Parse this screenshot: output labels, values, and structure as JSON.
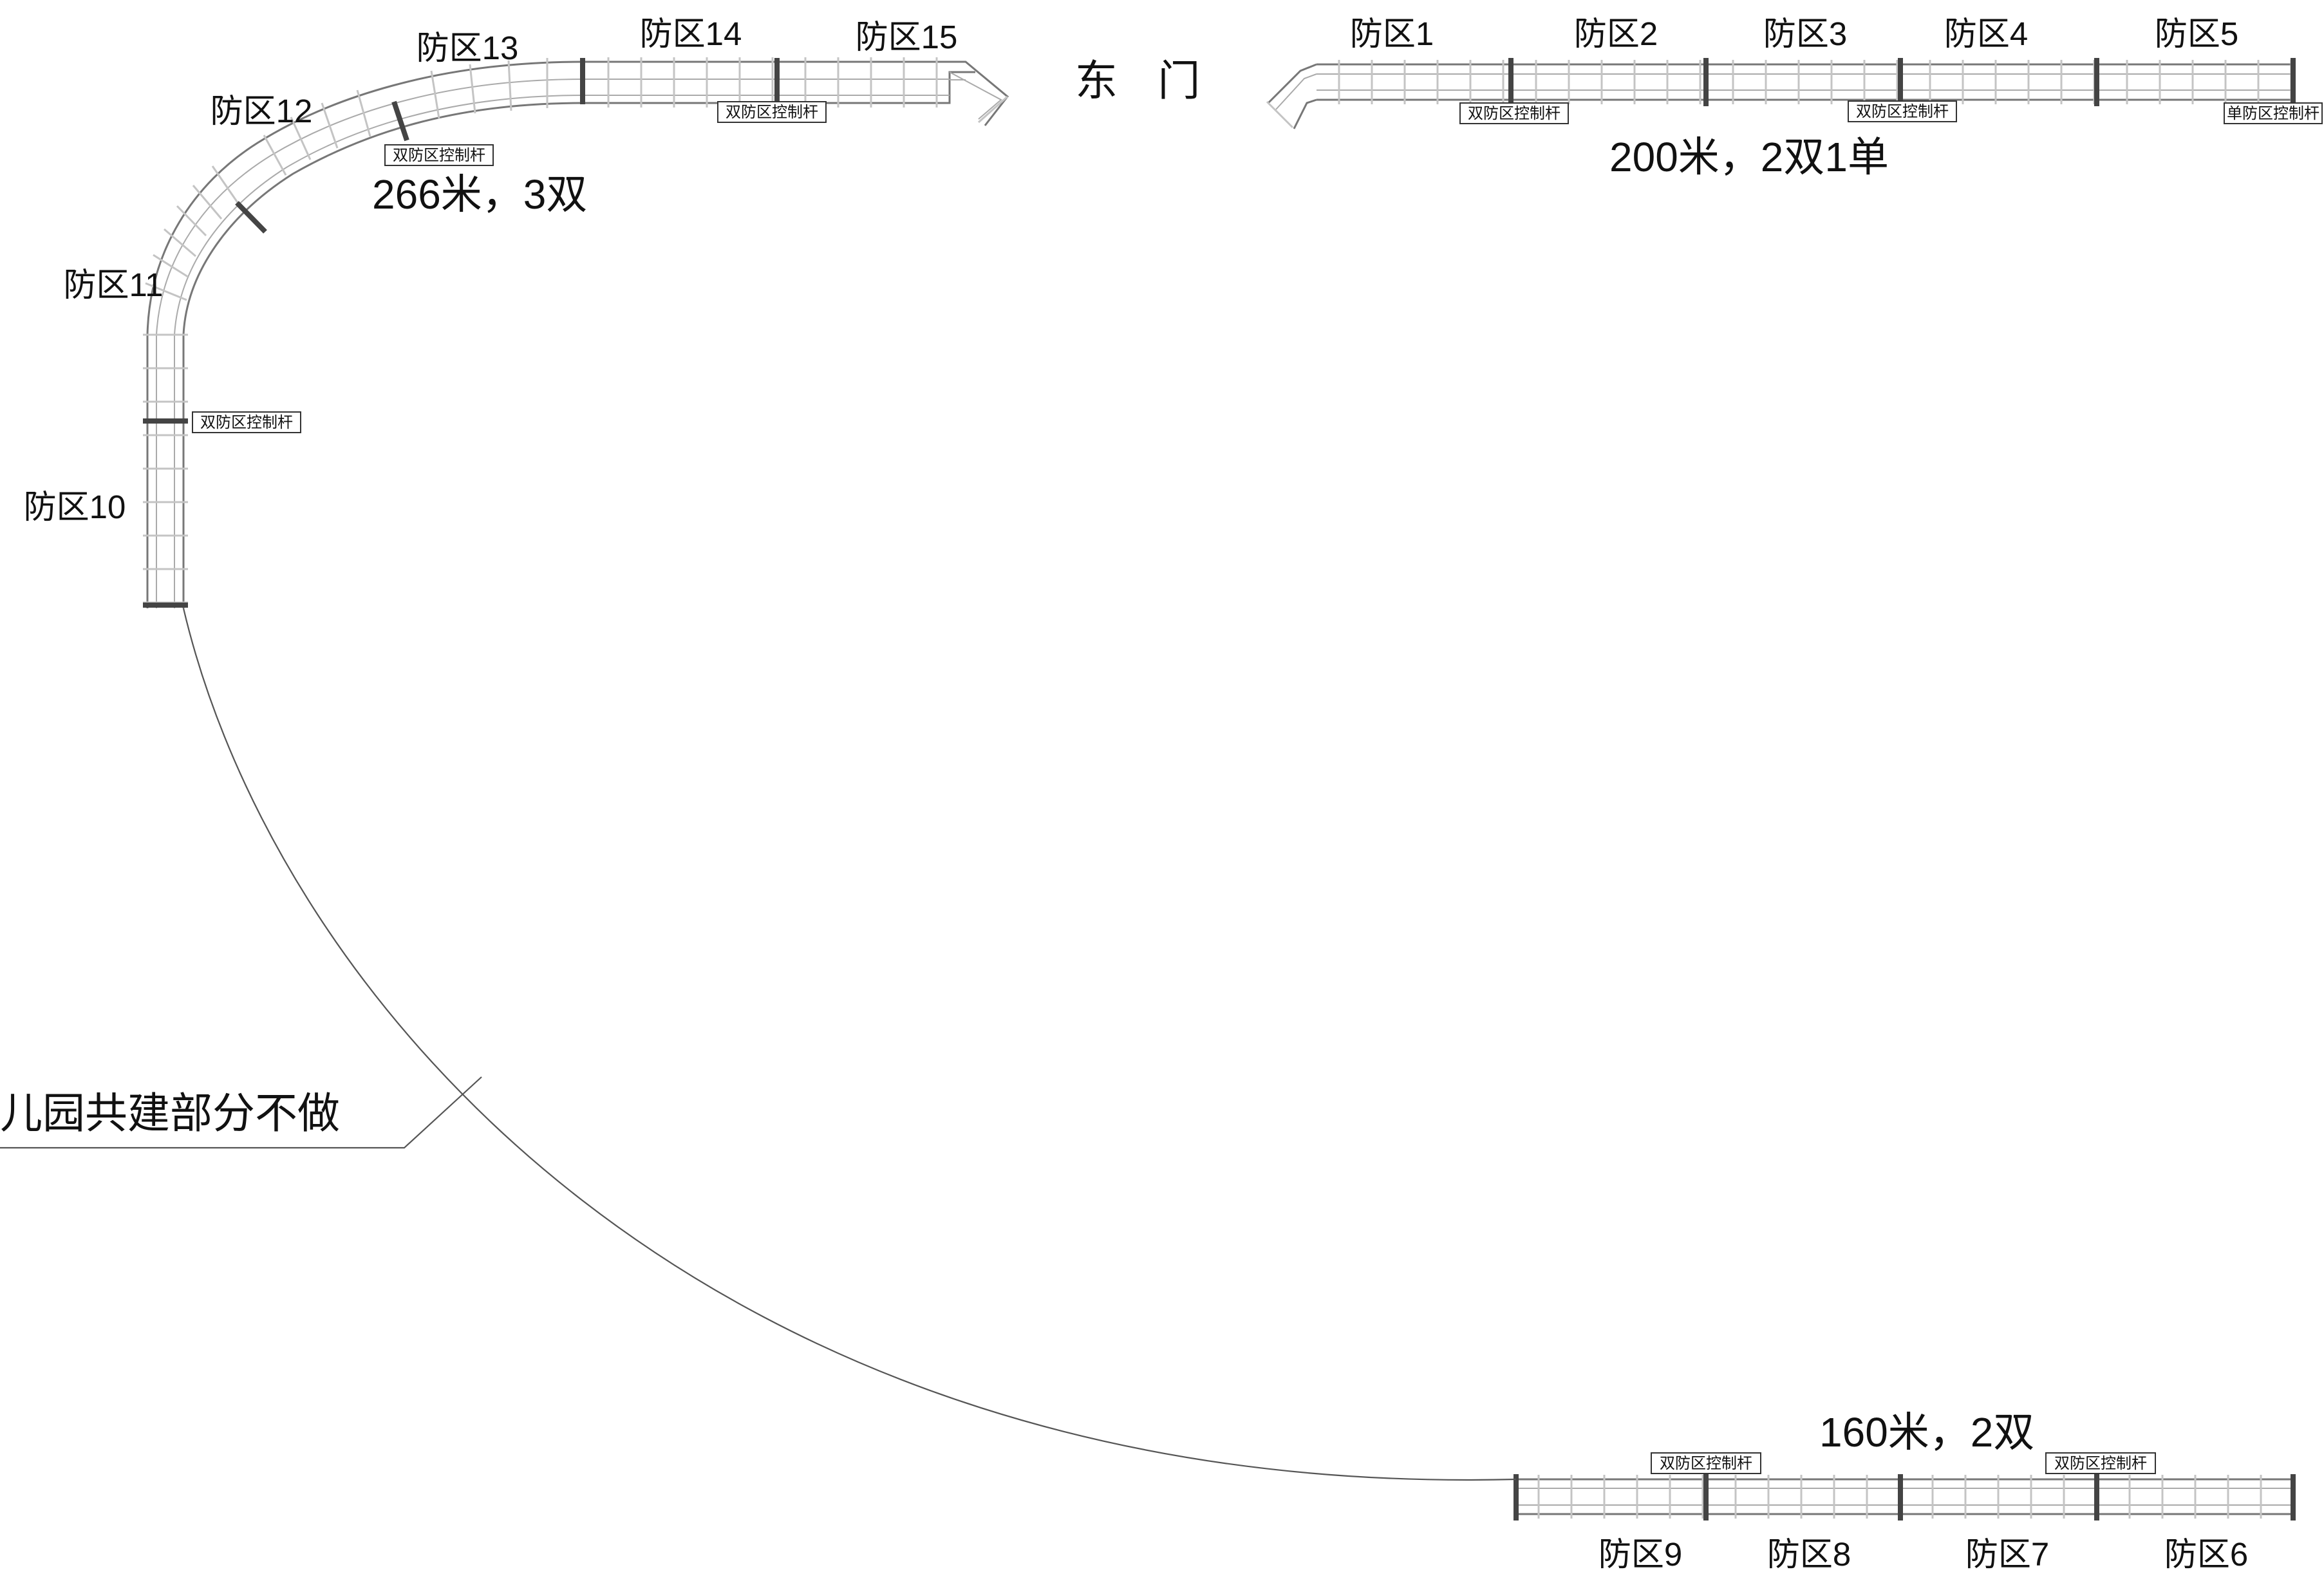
{
  "gate": {
    "label": "东 门"
  },
  "zones": {
    "z1": "防区1",
    "z2": "防区2",
    "z3": "防区3",
    "z4": "防区4",
    "z5": "防区5",
    "z6": "防区6",
    "z7": "防区7",
    "z8": "防区8",
    "z9": "防区9",
    "z10": "防区10",
    "z11": "防区11",
    "z12": "防区12",
    "z13": "防区13",
    "z14": "防区14",
    "z15": "防区15"
  },
  "summaries": {
    "northeast": "200米，2双1单",
    "northwest": "266米，3双",
    "south": "160米，2双"
  },
  "pole_tags": {
    "double": "双防区控制杆",
    "single": "单防区控制杆"
  },
  "note": {
    "text": "儿园共建部分不做"
  },
  "colors": {
    "fence_rail": "#777777",
    "fence_post": "#c4c4c4",
    "text": "#111111",
    "background": "#ffffff"
  }
}
